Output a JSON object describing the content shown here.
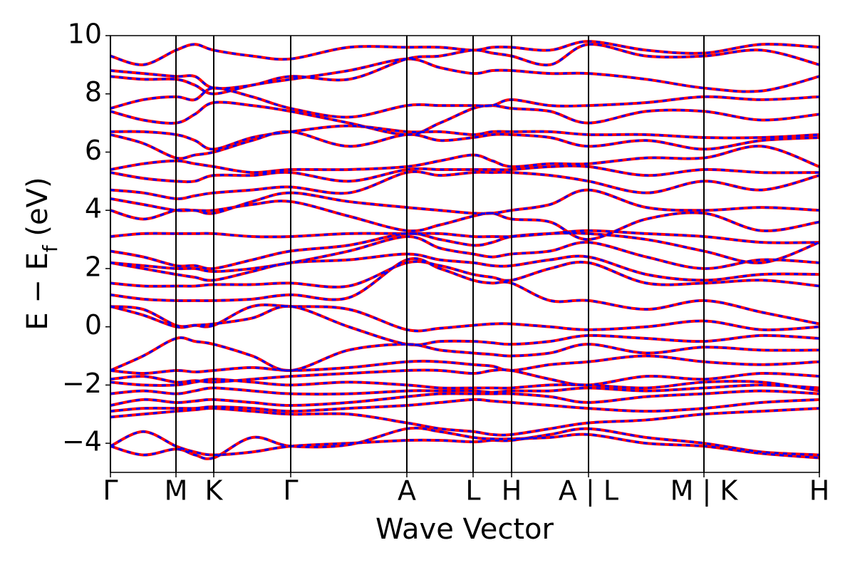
{
  "chart_data": {
    "type": "line",
    "xlabel": "Wave Vector",
    "ylabel_parts": [
      "E − E",
      "f",
      " (eV)"
    ],
    "x": [
      0,
      0.46,
      0.92,
      1.185,
      1.45,
      1.99,
      2.53,
      3.345,
      4.16,
      4.625,
      5.09,
      5.36,
      5.63,
      6.17,
      6.71,
      7.52,
      8.33,
      9.14,
      9.95
    ],
    "xlim": [
      0,
      9.95
    ],
    "xticks": [
      {
        "value": 0,
        "label": "Γ"
      },
      {
        "value": 0.92,
        "label": "M"
      },
      {
        "value": 1.45,
        "label": "K"
      },
      {
        "value": 2.53,
        "label": "Γ"
      },
      {
        "value": 4.16,
        "label": "A"
      },
      {
        "value": 5.09,
        "label": "L"
      },
      {
        "value": 5.63,
        "label": "H"
      },
      {
        "value": 6.71,
        "label": "A | L"
      },
      {
        "value": 8.33,
        "label": "M | K"
      },
      {
        "value": 9.95,
        "label": "H"
      }
    ],
    "ylim": [
      -5,
      10
    ],
    "yticks": [
      {
        "value": -4,
        "label": "−4"
      },
      {
        "value": -2,
        "label": "−2"
      },
      0,
      2,
      4,
      6,
      8,
      10
    ],
    "vertical_lines": true,
    "line_styles": [
      {
        "color": "#ff0000",
        "style": "solid"
      },
      {
        "color": "#0000ff",
        "style": "dashed"
      }
    ],
    "series": [
      {
        "values": [
          -4.1,
          -3.6,
          -4.1,
          -4.3,
          -4.4,
          -4.3,
          -4.1,
          -4.0,
          -3.9,
          -3.9,
          -3.95,
          -3.9,
          -3.9,
          -3.7,
          -3.5,
          -3.8,
          -4.0,
          -4.3,
          -4.4
        ]
      },
      {
        "values": [
          -4.1,
          -4.4,
          -4.2,
          -4.4,
          -4.5,
          -3.8,
          -4.1,
          -4.05,
          -3.5,
          -3.6,
          -3.8,
          -3.85,
          -3.85,
          -3.8,
          -3.7,
          -4.0,
          -4.1,
          -4.35,
          -4.5
        ]
      },
      {
        "values": [
          -3.1,
          -3.0,
          -2.9,
          -2.85,
          -2.8,
          -2.9,
          -3.0,
          -3.0,
          -3.3,
          -3.5,
          -3.6,
          -3.7,
          -3.7,
          -3.5,
          -3.3,
          -3.2,
          -3.0,
          -2.9,
          -2.8
        ]
      },
      {
        "values": [
          -2.9,
          -2.8,
          -2.8,
          -2.8,
          -2.75,
          -2.8,
          -2.9,
          -2.8,
          -2.7,
          -2.6,
          -2.5,
          -2.55,
          -2.6,
          -2.7,
          -2.8,
          -2.9,
          -2.8,
          -2.6,
          -2.5
        ]
      },
      {
        "values": [
          -2.7,
          -2.5,
          -2.6,
          -2.55,
          -2.5,
          -2.6,
          -2.7,
          -2.6,
          -2.4,
          -2.3,
          -2.3,
          -2.3,
          -2.3,
          -2.4,
          -2.6,
          -2.4,
          -2.3,
          -2.2,
          -2.3
        ]
      },
      {
        "values": [
          -2.3,
          -2.2,
          -2.3,
          -2.2,
          -2.1,
          -2.2,
          -2.3,
          -2.3,
          -2.2,
          -2.2,
          -2.2,
          -2.25,
          -2.2,
          -2.2,
          -2.1,
          -2.2,
          -2.1,
          -2.0,
          -2.1
        ]
      },
      {
        "values": [
          -1.9,
          -2.0,
          -2.0,
          -1.9,
          -1.8,
          -1.9,
          -2.0,
          -1.9,
          -2.0,
          -2.1,
          -2.1,
          -2.1,
          -2.1,
          -2.0,
          -2.0,
          -2.1,
          -1.9,
          -1.9,
          -2.2
        ]
      },
      {
        "values": [
          -1.8,
          -1.7,
          -1.9,
          -1.85,
          -1.9,
          -1.8,
          -1.7,
          -1.6,
          -1.5,
          -1.5,
          -1.6,
          -1.5,
          -1.5,
          -1.8,
          -2.0,
          -1.7,
          -1.8,
          -1.6,
          -1.7
        ]
      },
      {
        "values": [
          -1.5,
          -1.6,
          -1.5,
          -1.55,
          -1.5,
          -1.4,
          -1.5,
          -1.4,
          -1.2,
          -1.2,
          -1.3,
          -1.35,
          -1.5,
          -1.3,
          -1.2,
          -1.0,
          -1.2,
          -1.3,
          -1.2
        ]
      },
      {
        "values": [
          -1.5,
          -1.0,
          -0.4,
          -0.5,
          -0.6,
          -1.0,
          -1.5,
          -0.8,
          -0.6,
          -0.8,
          -0.9,
          -0.95,
          -1.0,
          -0.9,
          -0.6,
          -0.9,
          -0.7,
          -0.8,
          -0.8
        ]
      },
      {
        "values": [
          0.7,
          0.4,
          0.0,
          0.05,
          0.1,
          0.3,
          0.7,
          0.0,
          -0.6,
          -0.5,
          -0.5,
          -0.55,
          -0.6,
          -0.5,
          -0.3,
          -0.4,
          -0.5,
          -0.3,
          -0.4
        ]
      },
      {
        "values": [
          0.7,
          0.6,
          0.05,
          0.05,
          0.05,
          0.7,
          0.7,
          0.6,
          -0.1,
          -0.05,
          0.05,
          0.1,
          0.1,
          0.0,
          -0.1,
          0.0,
          0.2,
          -0.1,
          0.0
        ]
      },
      {
        "values": [
          1.1,
          0.95,
          0.9,
          0.9,
          0.9,
          0.95,
          1.1,
          1.0,
          2.3,
          2.0,
          1.6,
          1.5,
          1.5,
          0.9,
          0.9,
          0.6,
          0.9,
          0.5,
          0.1
        ]
      },
      {
        "values": [
          1.5,
          1.4,
          1.4,
          1.4,
          1.45,
          1.45,
          1.5,
          1.4,
          2.2,
          2.1,
          1.8,
          1.7,
          1.6,
          2.0,
          2.2,
          1.5,
          1.5,
          1.6,
          1.4
        ]
      },
      {
        "values": [
          2.2,
          2.0,
          1.8,
          1.7,
          1.6,
          1.9,
          2.2,
          2.3,
          2.5,
          2.3,
          2.2,
          2.1,
          2.1,
          2.3,
          2.4,
          1.8,
          1.6,
          1.8,
          1.8
        ]
      },
      {
        "values": [
          2.2,
          2.1,
          2.0,
          2.0,
          1.9,
          2.0,
          2.2,
          2.6,
          3.1,
          2.7,
          2.5,
          2.4,
          2.5,
          2.6,
          2.9,
          2.4,
          2.0,
          2.3,
          2.2
        ]
      },
      {
        "values": [
          2.6,
          2.4,
          2.1,
          2.1,
          2.0,
          2.3,
          2.6,
          2.8,
          3.2,
          3.0,
          2.8,
          2.9,
          3.1,
          3.2,
          3.2,
          3.0,
          2.6,
          2.2,
          2.9
        ]
      },
      {
        "values": [
          3.1,
          3.2,
          3.2,
          3.2,
          3.2,
          3.1,
          3.1,
          3.2,
          3.2,
          3.2,
          3.1,
          3.1,
          3.1,
          3.2,
          3.3,
          3.2,
          3.1,
          2.9,
          2.9
        ]
      },
      {
        "values": [
          4.0,
          3.7,
          4.0,
          4.0,
          4.0,
          4.2,
          4.3,
          3.8,
          3.3,
          3.5,
          3.8,
          3.9,
          3.7,
          3.6,
          3.0,
          3.7,
          3.9,
          3.3,
          3.6
        ]
      },
      {
        "values": [
          4.4,
          4.2,
          4.0,
          4.0,
          3.9,
          4.3,
          4.6,
          4.3,
          4.1,
          4.0,
          3.9,
          3.9,
          4.0,
          4.2,
          4.7,
          4.1,
          4.0,
          4.1,
          4.0
        ]
      },
      {
        "values": [
          4.7,
          4.6,
          4.4,
          4.5,
          4.6,
          4.7,
          4.8,
          4.6,
          5.3,
          5.2,
          5.3,
          5.3,
          5.3,
          5.2,
          5.0,
          4.6,
          5.0,
          4.7,
          5.2
        ]
      },
      {
        "values": [
          5.3,
          5.1,
          5.0,
          5.0,
          5.2,
          5.2,
          5.3,
          5.0,
          5.4,
          5.4,
          5.4,
          5.4,
          5.4,
          5.5,
          5.5,
          5.2,
          5.4,
          5.3,
          5.3
        ]
      },
      {
        "values": [
          5.4,
          5.6,
          5.7,
          5.6,
          5.5,
          5.3,
          5.4,
          5.4,
          5.5,
          5.7,
          5.9,
          5.7,
          5.5,
          5.6,
          5.6,
          5.8,
          5.8,
          6.2,
          5.5
        ]
      },
      {
        "values": [
          6.6,
          6.3,
          5.8,
          5.9,
          6.0,
          6.4,
          6.7,
          6.2,
          6.6,
          6.4,
          6.5,
          6.6,
          6.6,
          6.5,
          6.2,
          6.4,
          6.1,
          6.4,
          6.5
        ]
      },
      {
        "values": [
          6.7,
          6.7,
          6.6,
          6.4,
          6.1,
          6.5,
          6.7,
          6.9,
          6.7,
          6.7,
          6.6,
          6.7,
          6.7,
          6.7,
          6.6,
          6.6,
          6.5,
          6.5,
          6.6
        ]
      },
      {
        "values": [
          7.4,
          7.1,
          7.0,
          7.3,
          7.7,
          7.6,
          7.4,
          7.0,
          6.6,
          7.0,
          7.5,
          7.6,
          7.5,
          7.4,
          7.0,
          7.4,
          7.4,
          7.1,
          7.3
        ]
      },
      {
        "values": [
          7.5,
          7.8,
          7.9,
          7.8,
          8.2,
          7.9,
          7.5,
          7.2,
          7.6,
          7.6,
          7.6,
          7.6,
          7.8,
          7.6,
          7.6,
          7.7,
          7.9,
          7.8,
          7.9
        ]
      },
      {
        "values": [
          8.6,
          8.5,
          8.5,
          8.3,
          8.0,
          8.3,
          8.5,
          8.8,
          9.2,
          8.9,
          8.7,
          8.8,
          8.8,
          8.7,
          8.7,
          8.5,
          8.2,
          8.1,
          8.6
        ]
      },
      {
        "values": [
          8.8,
          8.7,
          8.6,
          8.6,
          8.2,
          8.3,
          8.6,
          8.5,
          9.2,
          9.3,
          9.5,
          9.4,
          9.3,
          9.0,
          9.7,
          9.3,
          9.3,
          9.5,
          9.0
        ]
      },
      {
        "values": [
          9.3,
          9.0,
          9.5,
          9.7,
          9.5,
          9.3,
          9.2,
          9.6,
          9.6,
          9.6,
          9.5,
          9.6,
          9.6,
          9.5,
          9.8,
          9.5,
          9.4,
          9.7,
          9.6
        ]
      }
    ]
  }
}
